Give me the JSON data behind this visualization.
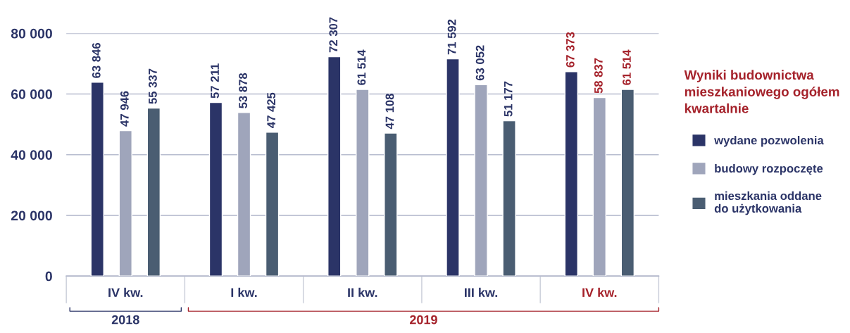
{
  "chart_data": {
    "type": "bar",
    "title": "Wyniki budownictwa\nmieszkaniowego ogółem\nkwartalnie",
    "categories": [
      "IV kw.",
      "I kw.",
      "II kw.",
      "III kw.",
      "IV kw."
    ],
    "series": [
      {
        "name": "wydane pozwolenia",
        "color": "#2b3467",
        "values": [
          63846,
          57211,
          72307,
          71592,
          67373
        ],
        "value_labels": [
          "63 846",
          "57 211",
          "72 307",
          "71 592",
          "67 373"
        ]
      },
      {
        "name": "budowy rozpoczęte",
        "color": "#9fa5bb",
        "values": [
          47946,
          53878,
          61514,
          63052,
          58837
        ],
        "value_labels": [
          "47 946",
          "53 878",
          "61 514",
          "63 052",
          "58 837"
        ]
      },
      {
        "name": "mieszkania oddane\ndo użytkowania",
        "color": "#4a5d72",
        "values": [
          55337,
          47425,
          47108,
          51177,
          61514
        ],
        "value_labels": [
          "55 337",
          "47 425",
          "47 108",
          "51 177",
          "61 514"
        ]
      }
    ],
    "ylim": [
      0,
      80000
    ],
    "yticks": [
      {
        "value": 0,
        "label": "0"
      },
      {
        "value": 20000,
        "label": "20 000"
      },
      {
        "value": 40000,
        "label": "40 000"
      },
      {
        "value": 60000,
        "label": "60 000"
      },
      {
        "value": 80000,
        "label": "80 000"
      }
    ],
    "grid": "y",
    "legend": "right",
    "annotations": [
      "2018",
      "2019"
    ]
  }
}
